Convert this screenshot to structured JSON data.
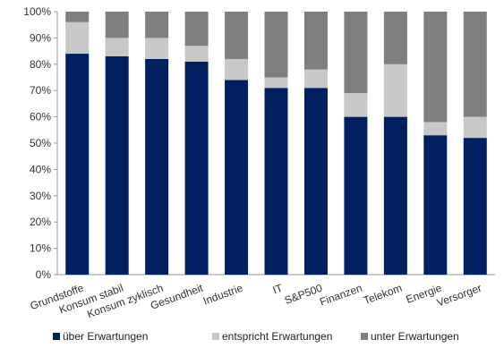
{
  "chart_data": {
    "type": "bar",
    "stacked": true,
    "categories": [
      "Grundstoffe",
      "Konsum stabil",
      "Konsum zyklisch",
      "Gesundheit",
      "Industrie",
      "IT",
      "S&P500",
      "Finanzen",
      "Telekom",
      "Energie",
      "Versorger"
    ],
    "series": [
      {
        "name": "über Erwartungen",
        "color": "#002060",
        "values": [
          84,
          83,
          82,
          81,
          74,
          71,
          71,
          60,
          60,
          53,
          52
        ]
      },
      {
        "name": "entspricht Erwartungen",
        "color": "#c8c8c8",
        "values": [
          12,
          7,
          8,
          6,
          8,
          4,
          7,
          9,
          20,
          5,
          8
        ]
      },
      {
        "name": "unter Erwartungen",
        "color": "#7f7f7f",
        "values": [
          4,
          10,
          10,
          13,
          18,
          25,
          22,
          31,
          20,
          42,
          40
        ]
      }
    ],
    "y_ticks": [
      "0%",
      "10%",
      "20%",
      "30%",
      "40%",
      "50%",
      "60%",
      "70%",
      "80%",
      "90%",
      "100%"
    ],
    "ylim": [
      0,
      100
    ],
    "grid": false,
    "legend_position": "bottom"
  }
}
